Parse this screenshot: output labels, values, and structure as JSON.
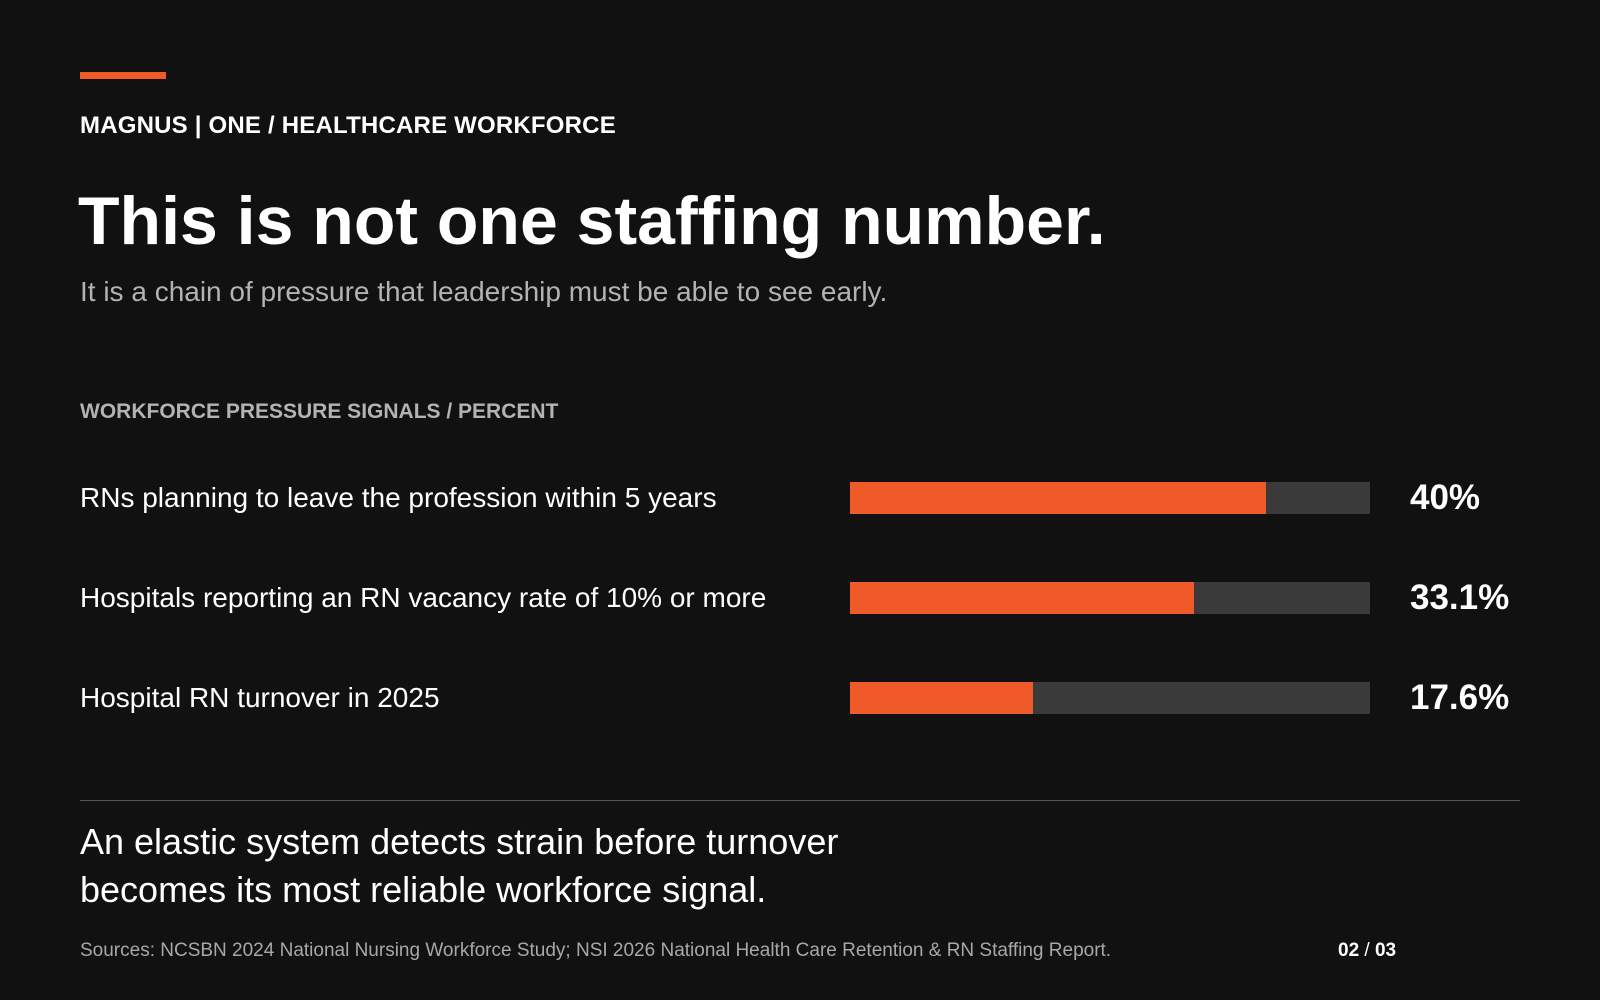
{
  "header": {
    "eyebrow": "MAGNUS | ONE / HEALTHCARE WORKFORCE",
    "title": "This is not one staffing number.",
    "subtitle": "It is a chain of pressure that leadership must be able to see early."
  },
  "colors": {
    "background": "#111111",
    "accent": "#f05a28",
    "bar_track": "#3a3a3a",
    "muted_text": "#b3b3b3"
  },
  "chart_data": {
    "type": "bar",
    "orientation": "horizontal",
    "title": "WORKFORCE PRESSURE SIGNALS / PERCENT",
    "categories": [
      "RNs planning to leave the profession within 5 years",
      "Hospitals reporting an RN vacancy rate of 10% or more",
      "Hospital RN turnover in 2025"
    ],
    "values": [
      40,
      33.1,
      17.6
    ],
    "value_labels": [
      "40%",
      "33.1%",
      "17.6%"
    ],
    "xlim": [
      0,
      50
    ],
    "grid": false,
    "legend": "none"
  },
  "footer": {
    "conclusion": "An elastic system detects strain before turnover becomes its most reliable workforce signal.",
    "sources": "Sources: NCSBN 2024 National Nursing Workforce Study; NSI 2026 National Health Care Retention & RN Staffing Report.",
    "page_current": "02",
    "page_separator": "/",
    "page_total": "03"
  }
}
